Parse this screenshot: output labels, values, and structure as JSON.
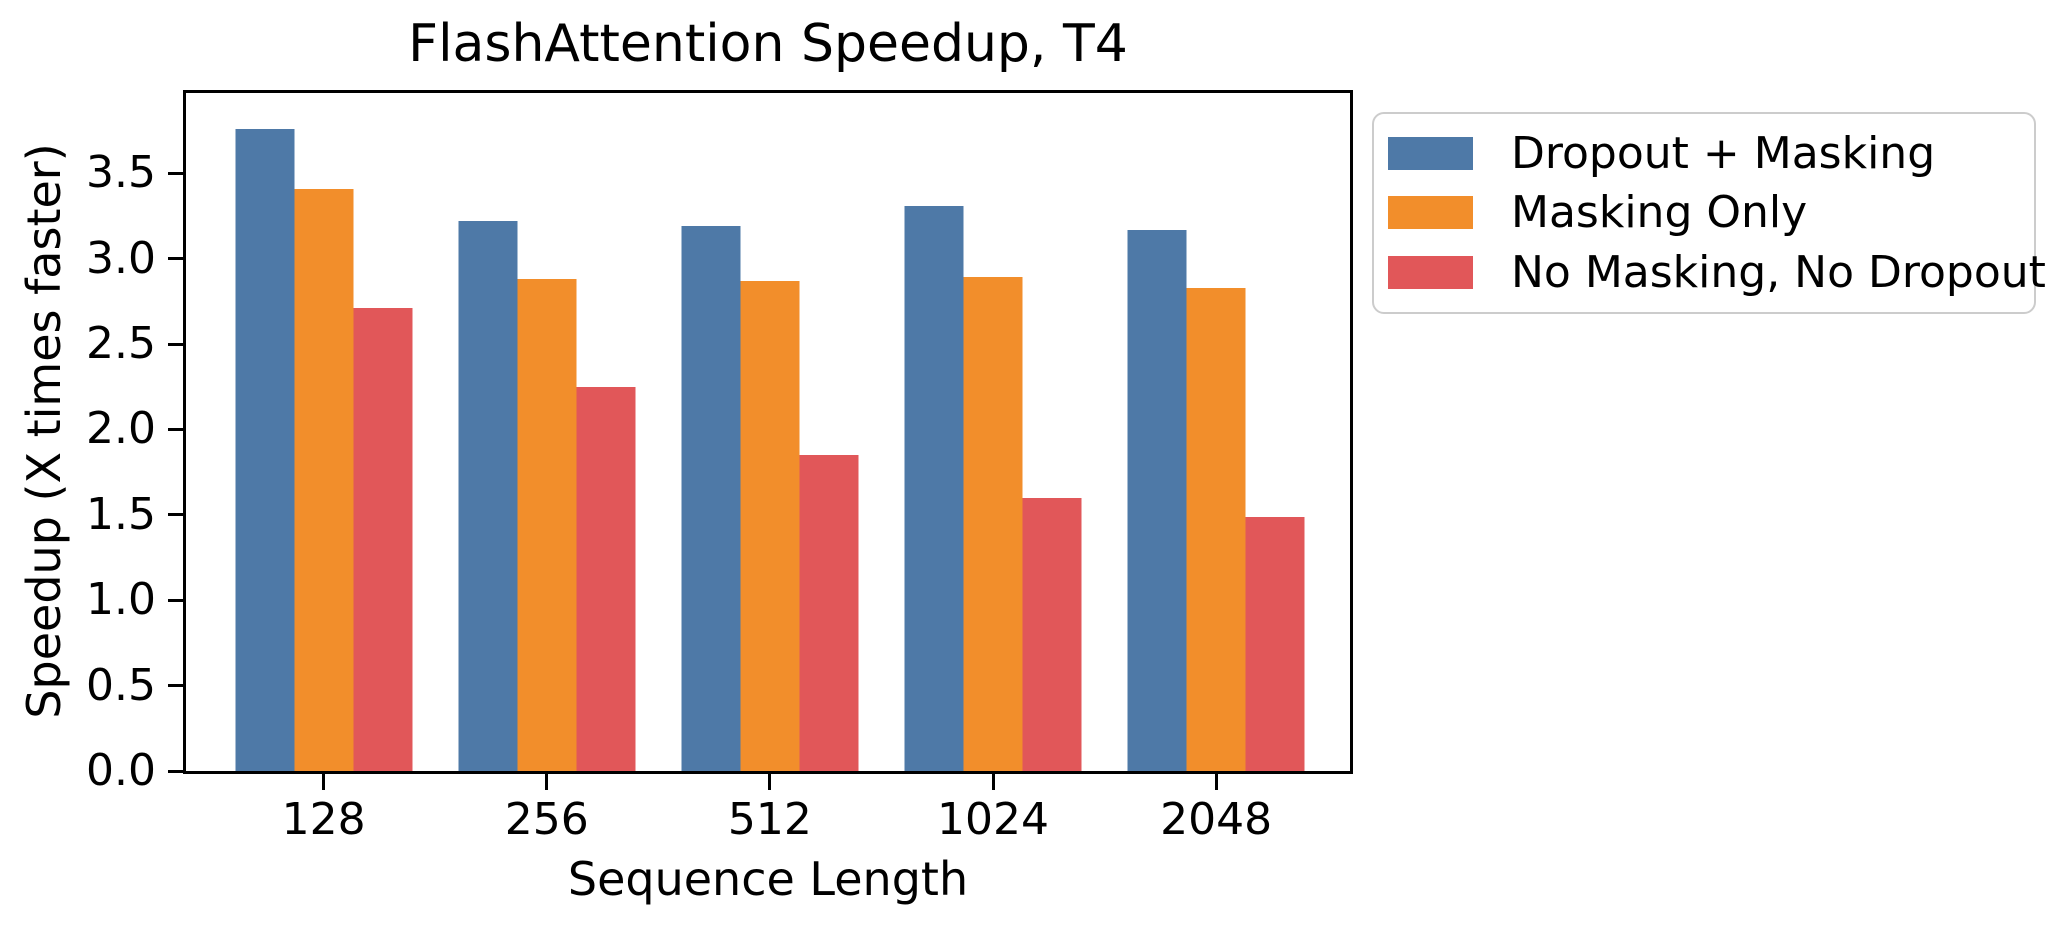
{
  "title": "FlashAttention Speedup, T4",
  "axes": {
    "xlabel": "Sequence Length",
    "ylabel": "Speedup (X times faster)",
    "ytick_labels": [
      "0.0",
      "0.5",
      "1.0",
      "1.5",
      "2.0",
      "2.5",
      "3.0",
      "3.5"
    ],
    "xtick_labels": [
      "128",
      "256",
      "512",
      "1024",
      "2048"
    ]
  },
  "colors": {
    "series_blue": "#4E79A7",
    "series_orange": "#F28E2B",
    "series_red": "#E15759",
    "spine": "#000000",
    "legend_border": "#cccccc",
    "background": "#ffffff"
  },
  "chart_data": {
    "type": "bar",
    "title": "FlashAttention Speedup, T4",
    "xlabel": "Sequence Length",
    "ylabel": "Speedup (X times faster)",
    "categories": [
      "128",
      "256",
      "512",
      "1024",
      "2048"
    ],
    "series": [
      {
        "name": "Dropout + Masking",
        "color": "#4E79A7",
        "values": [
          3.76,
          3.22,
          3.19,
          3.31,
          3.17
        ]
      },
      {
        "name": "Masking Only",
        "color": "#F28E2B",
        "values": [
          3.41,
          2.88,
          2.87,
          2.89,
          2.83
        ]
      },
      {
        "name": "No Masking, No Dropout",
        "color": "#E15759",
        "values": [
          2.71,
          2.25,
          1.85,
          1.6,
          1.49
        ]
      }
    ],
    "ylim": [
      0,
      3.97
    ],
    "ytick_step": 0.5,
    "grid": false,
    "legend_position": "outside-right"
  }
}
